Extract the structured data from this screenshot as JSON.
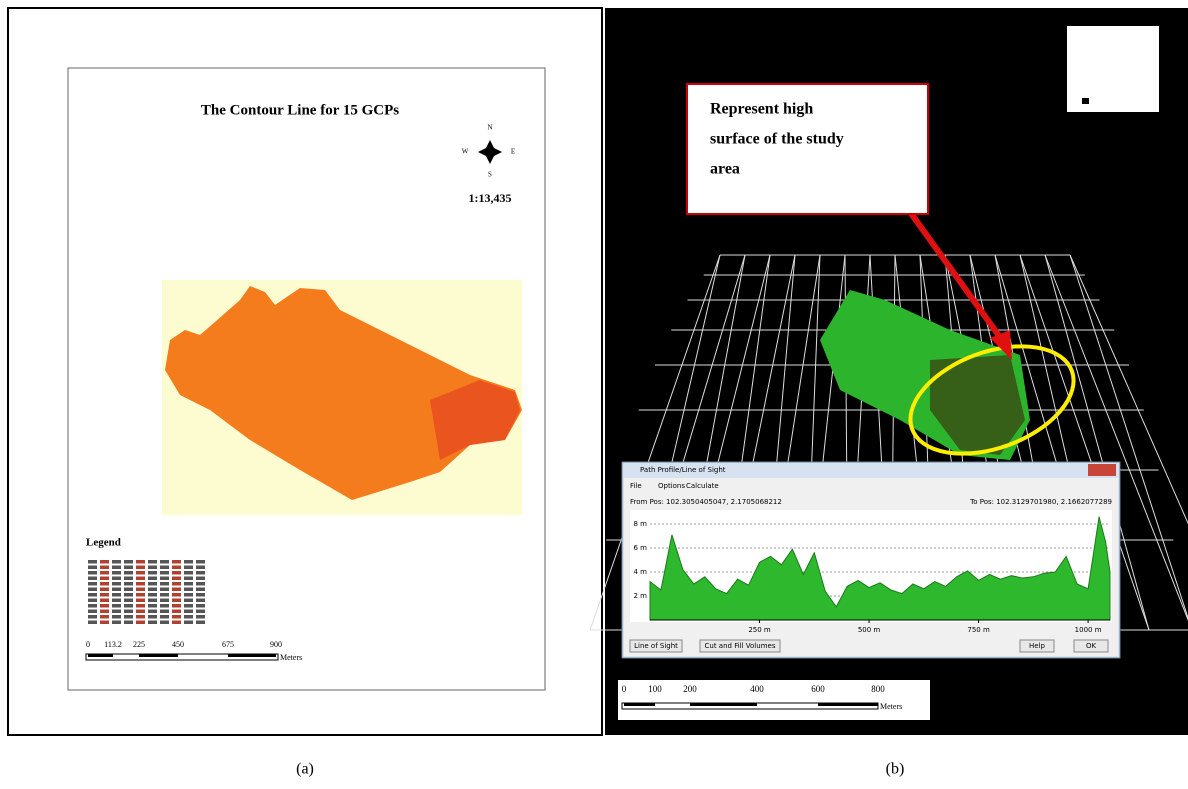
{
  "panel_a": {
    "title": "The Contour Line for 15 GCPs",
    "compass": {
      "n": "N",
      "s": "S",
      "e": "E",
      "w": "W"
    },
    "scale_ratio": "1:13,435",
    "legend_title": "Legend",
    "scale_labels": [
      "0",
      "113.2",
      "225",
      "450",
      "675",
      "900"
    ],
    "scale_unit": "Meters",
    "caption": "(a)"
  },
  "panel_b": {
    "annotation": [
      "Represent high",
      "surface of the study",
      "area"
    ],
    "window": {
      "title": "Path Profile/Line of Sight",
      "menu": [
        "File",
        "Options",
        "Calculate"
      ],
      "from_pos": "From Pos: 102.3050405047, 2.1705068212",
      "to_pos": "To Pos: 102.3129701980, 2.1662077289",
      "buttons": [
        "Line of Sight",
        "Cut and Fill Volumes",
        "Help",
        "OK"
      ]
    },
    "profile": {
      "xlim": [
        0,
        1050
      ],
      "ylim": [
        0,
        9
      ],
      "yticks": [
        {
          "value": 2,
          "label": "2 m"
        },
        {
          "value": 4,
          "label": "4 m"
        },
        {
          "value": 6,
          "label": "6 m"
        },
        {
          "value": 8,
          "label": "8 m"
        }
      ],
      "xticks": [
        {
          "value": 250,
          "label": "250 m"
        },
        {
          "value": 500,
          "label": "500 m"
        },
        {
          "value": 750,
          "label": "750 m"
        },
        {
          "value": 1000,
          "label": "1000 m"
        }
      ],
      "x": [
        0,
        25,
        50,
        75,
        100,
        125,
        150,
        175,
        200,
        225,
        250,
        275,
        300,
        325,
        350,
        375,
        400,
        425,
        450,
        475,
        500,
        525,
        550,
        575,
        600,
        625,
        650,
        675,
        700,
        725,
        750,
        775,
        800,
        825,
        850,
        875,
        900,
        925,
        950,
        975,
        1000,
        1025,
        1040,
        1050
      ],
      "values": [
        3.2,
        2.5,
        7.1,
        4.2,
        3.0,
        3.6,
        2.6,
        2.2,
        3.4,
        2.9,
        4.8,
        5.3,
        4.6,
        5.9,
        3.8,
        5.6,
        2.4,
        1.1,
        2.8,
        3.3,
        2.7,
        3.1,
        2.5,
        2.2,
        3.0,
        2.6,
        3.2,
        2.8,
        3.6,
        4.1,
        3.3,
        3.8,
        3.4,
        3.7,
        3.5,
        3.6,
        3.9,
        4.0,
        5.3,
        3.0,
        2.6,
        8.6,
        6.5,
        4.0
      ]
    },
    "scale_labels": [
      "0",
      "100",
      "200",
      "400",
      "600",
      "800"
    ],
    "scale_unit": "Meters",
    "caption": "(b)"
  }
}
